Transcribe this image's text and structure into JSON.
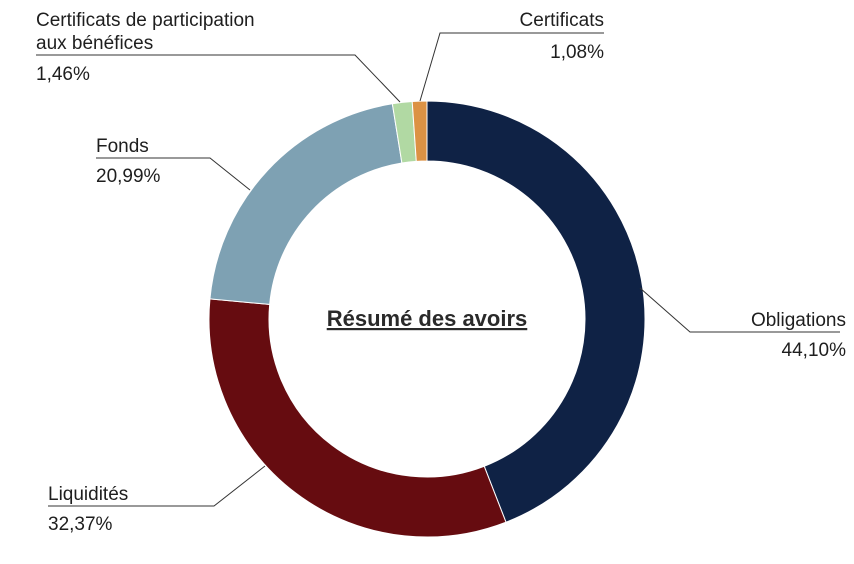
{
  "chart_data": {
    "type": "pie",
    "title": "Résumé des avoirs",
    "series": [
      {
        "name": "Obligations",
        "value_label": "44,10%",
        "value": 44.1,
        "color": "#0f2245"
      },
      {
        "name": "Liquidités",
        "value_label": "32,37%",
        "value": 32.37,
        "color": "#660c10"
      },
      {
        "name": "Fonds",
        "value_label": "20,99%",
        "value": 20.99,
        "color": "#7ea1b3"
      },
      {
        "name_lines": [
          "Certificats de participation",
          "aux bénéfices"
        ],
        "value_label": "1,46%",
        "value": 1.46,
        "color": "#b1d9a3"
      },
      {
        "name": "Certificats",
        "value_label": "1,08%",
        "value": 1.08,
        "color": "#dc9244"
      }
    ]
  }
}
